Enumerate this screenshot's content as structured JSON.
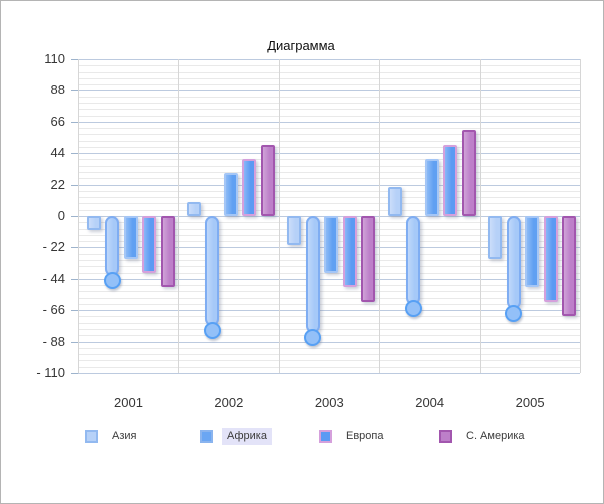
{
  "chart_data": {
    "type": "bar",
    "title": "Диаграмма",
    "categories": [
      "2001",
      "2002",
      "2003",
      "2004",
      "2005"
    ],
    "series": [
      {
        "id": "asia",
        "name": "Азия",
        "style": "column",
        "in_legend": true,
        "values": [
          -10,
          10,
          -20,
          20,
          -30
        ],
        "fill": "#b6d1f8",
        "border": "#92b9f0"
      },
      {
        "id": "capsule",
        "name": "",
        "style": "capsule-with-ball-handle",
        "in_legend": false,
        "values": [
          -45,
          -80,
          -85,
          -65,
          -68
        ],
        "fill": "#a6c9f8",
        "border": "#7fadf2",
        "ball_fill": "#93c0f8",
        "ball_border": "#57a0f4"
      },
      {
        "id": "africa",
        "name": "Африка",
        "style": "column",
        "in_legend": true,
        "values": [
          -30,
          30,
          -40,
          40,
          -50
        ],
        "fill": "#60a0f2",
        "border": "#a4c6f6"
      },
      {
        "id": "europe",
        "name": "Европа",
        "style": "column",
        "in_legend": true,
        "values": [
          -40,
          40,
          -50,
          50,
          -60
        ],
        "fill": "#5b9af3",
        "border": "#d5a0dc"
      },
      {
        "id": "n-america",
        "name": "С. Америка",
        "style": "column",
        "in_legend": true,
        "values": [
          -50,
          50,
          -60,
          60,
          -70
        ],
        "fill": "#bd7fc9",
        "border": "#a256ae"
      }
    ],
    "y_axis": {
      "min": -110,
      "max": 110,
      "major_step": 22,
      "minor_divisions_per_major": 5,
      "tick_labels": [
        "110",
        "88",
        "66",
        "44",
        "22",
        "0",
        "- 22",
        "- 44",
        "- 66",
        "- 88",
        "- 110"
      ]
    },
    "legend": {
      "position": "bottom",
      "highlight_color": "#e3e3f8",
      "items": [
        {
          "id": "asia",
          "label": "Азия",
          "fill": "#b6d1f8",
          "border": "#92b9f0",
          "highlighted": false
        },
        {
          "id": "africa",
          "label": "Африка",
          "fill": "#6aa6f3",
          "border": "#8ab4ee",
          "highlighted": true
        },
        {
          "id": "europe",
          "label": "Европа",
          "fill": "#5b9af3",
          "border": "#d5a0dc",
          "highlighted": false
        },
        {
          "id": "n-america",
          "label": "С. Америка",
          "fill": "#bd7fc9",
          "border": "#a256ae",
          "highlighted": false
        }
      ]
    },
    "grid": {
      "horizontal_major": true,
      "horizontal_minor": true,
      "vertical_category_lines": true,
      "major_color": "#bccadf",
      "minor_color": "#e9e9e9",
      "vertical_color": "#d6d6d6"
    }
  }
}
